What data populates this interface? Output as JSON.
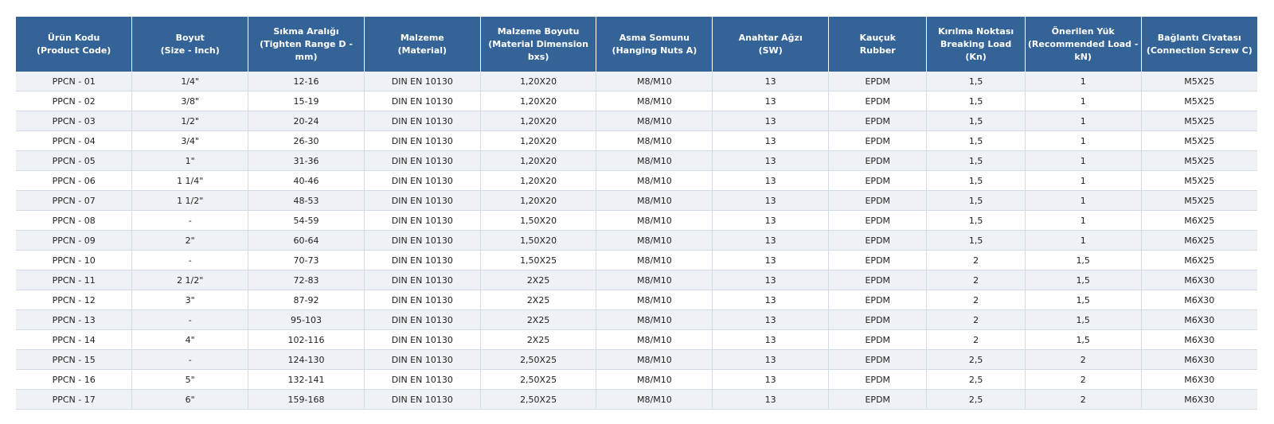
{
  "table": {
    "headers": [
      "Ürün Kodu\n(Product Code)",
      "Boyut\n(Size - Inch)",
      "Sıkma Aralığı\n(Tighten Range D - mm)",
      "Malzeme\n(Material)",
      "Malzeme Boyutu\n(Material Dimension bxs)",
      "Asma Somunu\n(Hanging Nuts A)",
      "Anahtar Ağzı\n(SW)",
      "Kauçuk\nRubber",
      "Kırılma Noktası\nBreaking Load (Kn)",
      "Önerilen Yük\n(Recommended Load -\nkN)",
      "Bağlantı Civatası\n(Connection Screw C)"
    ],
    "rows": [
      [
        "PPCN - 01",
        "1/4\"",
        "12-16",
        "DIN EN 10130",
        "1,20X20",
        "M8/M10",
        "13",
        "EPDM",
        "1,5",
        "1",
        "M5X25"
      ],
      [
        "PPCN - 02",
        "3/8\"",
        "15-19",
        "DIN EN 10130",
        "1,20X20",
        "M8/M10",
        "13",
        "EPDM",
        "1,5",
        "1",
        "M5X25"
      ],
      [
        "PPCN - 03",
        "1/2\"",
        "20-24",
        "DIN EN 10130",
        "1,20X20",
        "M8/M10",
        "13",
        "EPDM",
        "1,5",
        "1",
        "M5X25"
      ],
      [
        "PPCN - 04",
        "3/4\"",
        "26-30",
        "DIN EN 10130",
        "1,20X20",
        "M8/M10",
        "13",
        "EPDM",
        "1,5",
        "1",
        "M5X25"
      ],
      [
        "PPCN - 05",
        "1\"",
        "31-36",
        "DIN EN 10130",
        "1,20X20",
        "M8/M10",
        "13",
        "EPDM",
        "1,5",
        "1",
        "M5X25"
      ],
      [
        "PPCN - 06",
        "1 1/4\"",
        "40-46",
        "DIN EN 10130",
        "1,20X20",
        "M8/M10",
        "13",
        "EPDM",
        "1,5",
        "1",
        "M5X25"
      ],
      [
        "PPCN - 07",
        "1 1/2\"",
        "48-53",
        "DIN EN 10130",
        "1,20X20",
        "M8/M10",
        "13",
        "EPDM",
        "1,5",
        "1",
        "M5X25"
      ],
      [
        "PPCN - 08",
        "-",
        "54-59",
        "DIN EN 10130",
        "1,50X20",
        "M8/M10",
        "13",
        "EPDM",
        "1,5",
        "1",
        "M6X25"
      ],
      [
        "PPCN - 09",
        "2\"",
        "60-64",
        "DIN EN 10130",
        "1,50X20",
        "M8/M10",
        "13",
        "EPDM",
        "1,5",
        "1",
        "M6X25"
      ],
      [
        "PPCN - 10",
        "-",
        "70-73",
        "DIN EN 10130",
        "1,50X25",
        "M8/M10",
        "13",
        "EPDM",
        "2",
        "1,5",
        "M6X25"
      ],
      [
        "PPCN - 11",
        "2 1/2\"",
        "72-83",
        "DIN EN 10130",
        "2X25",
        "M8/M10",
        "13",
        "EPDM",
        "2",
        "1,5",
        "M6X30"
      ],
      [
        "PPCN - 12",
        "3\"",
        "87-92",
        "DIN EN 10130",
        "2X25",
        "M8/M10",
        "13",
        "EPDM",
        "2",
        "1,5",
        "M6X30"
      ],
      [
        "PPCN - 13",
        "-",
        "95-103",
        "DIN EN 10130",
        "2X25",
        "M8/M10",
        "13",
        "EPDM",
        "2",
        "1,5",
        "M6X30"
      ],
      [
        "PPCN - 14",
        "4\"",
        "102-116",
        "DIN EN 10130",
        "2X25",
        "M8/M10",
        "13",
        "EPDM",
        "2",
        "1,5",
        "M6X30"
      ],
      [
        "PPCN - 15",
        "-",
        "124-130",
        "DIN EN 10130",
        "2,50X25",
        "M8/M10",
        "13",
        "EPDM",
        "2,5",
        "2",
        "M6X30"
      ],
      [
        "PPCN - 16",
        "5\"",
        "132-141",
        "DIN EN 10130",
        "2,50X25",
        "M8/M10",
        "13",
        "EPDM",
        "2,5",
        "2",
        "M6X30"
      ],
      [
        "PPCN - 17",
        "6\"",
        "159-168",
        "DIN EN 10130",
        "2,50X25",
        "M8/M10",
        "13",
        "EPDM",
        "2,5",
        "2",
        "M6X30"
      ]
    ]
  },
  "colors": {
    "header_bg": "#336397",
    "header_text": "#ffffff",
    "row_alt_bg": "#eef2f6",
    "row_bg": "#ffffff",
    "grid_line": "#d3dbe5"
  }
}
